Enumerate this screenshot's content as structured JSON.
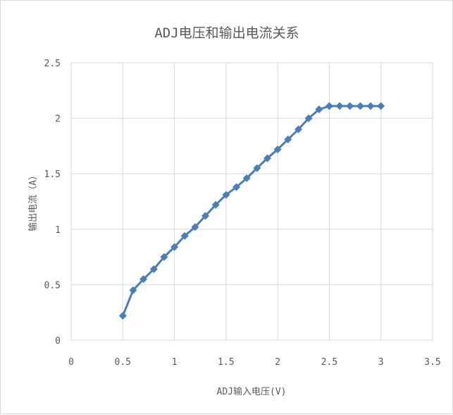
{
  "chart_data": {
    "type": "scatter",
    "title": "ADJ电压和输出电流关系",
    "xlabel": "ADJ输入电压(V)",
    "ylabel": "输出电流（A）",
    "xlim": [
      0,
      3.5
    ],
    "ylim": [
      0,
      2.5
    ],
    "xticks": [
      "0",
      "0.5",
      "1",
      "1.5",
      "2",
      "2.5",
      "3",
      "3.5"
    ],
    "yticks": [
      "0",
      "0.5",
      "1",
      "1.5",
      "2",
      "2.5"
    ],
    "grid": true,
    "legend": "none",
    "colors": {
      "series": "#4a7ebb",
      "grid": "#d9d9d9",
      "text": "#595959"
    },
    "series": [
      {
        "marker": "diamond",
        "x": [
          0.5,
          0.6,
          0.7,
          0.8,
          0.9,
          1.0,
          1.1,
          1.2,
          1.3,
          1.4,
          1.5,
          1.6,
          1.7,
          1.8,
          1.9,
          2.0,
          2.1,
          2.2,
          2.3,
          2.4,
          2.5,
          2.6,
          2.7,
          2.8,
          2.9,
          3.0
        ],
        "y": [
          0.22,
          0.45,
          0.55,
          0.64,
          0.75,
          0.84,
          0.94,
          1.02,
          1.12,
          1.22,
          1.31,
          1.38,
          1.46,
          1.55,
          1.64,
          1.72,
          1.81,
          1.9,
          2.0,
          2.08,
          2.11,
          2.11,
          2.11,
          2.11,
          2.11,
          2.11
        ]
      }
    ]
  }
}
